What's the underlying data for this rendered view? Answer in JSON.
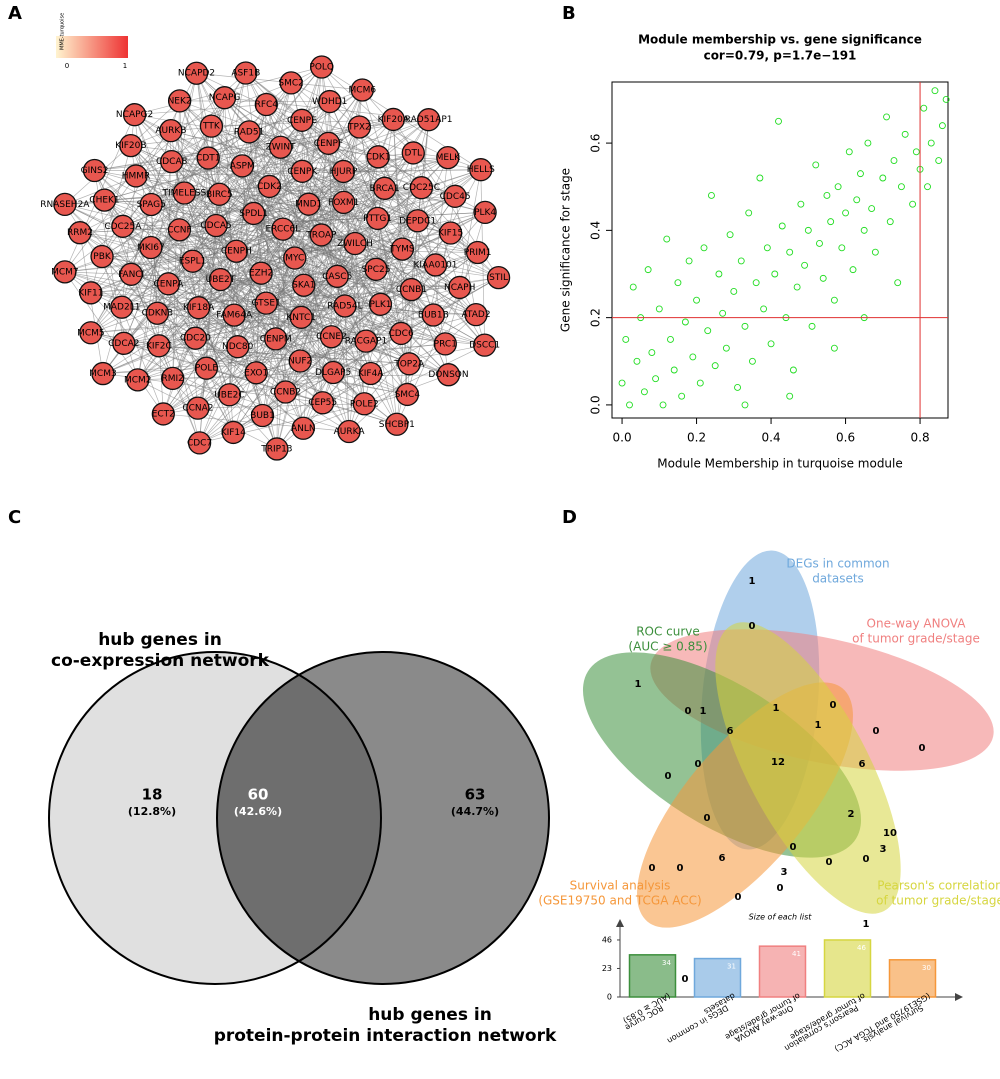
{
  "chart_data": [
    {
      "type": "network",
      "panel_label": "A",
      "legend_title": "MME-turquoise",
      "legend_ticks": [
        0,
        1
      ],
      "node_color": "#e8574f",
      "legend_colors": [
        "#fff4cf",
        "#ee3333"
      ],
      "nodes": [
        "MYC",
        "EZH2",
        "ERCC6L",
        "SKA1",
        "CENPH",
        "TROAP",
        "GTSE1",
        "SPDL1",
        "CASC5",
        "UBE2T",
        "MND1",
        "KNTC1",
        "CDCA5",
        "ZWILCH",
        "FAM64A",
        "CDK2",
        "RAD54L",
        "ESPL1",
        "FOXM1",
        "CENPM",
        "BIRC5",
        "SPC25",
        "KIF18A",
        "CENPK",
        "CCNE2",
        "CCNF",
        "PTTG1",
        "NDC80",
        "ASPM",
        "PLK1",
        "CENPA",
        "HJURP",
        "NUF2",
        "TIMELESS",
        "TYMS",
        "CDC20",
        "ZWINT",
        "RACGAP1",
        "MKI67",
        "BRCA1",
        "EXO1",
        "CDT1",
        "CCNB1",
        "CDKN3",
        "CENPF",
        "DLGAP5",
        "SPAG5",
        "DEPDC1",
        "POLE",
        "RAD51",
        "CDC6",
        "FANCI",
        "CDK1",
        "CCNB2",
        "CDCA8",
        "KIAA0101",
        "KIF2C",
        "CENPE",
        "KIF4A",
        "CDC25A",
        "CDC25C",
        "UBE2C",
        "TTK",
        "BUB1B",
        "MAD2L1",
        "TPX2",
        "CEP55",
        "HMMR",
        "KIF15",
        "RMI2",
        "RFC4",
        "TOP2A",
        "PBK",
        "DTL",
        "BUB1",
        "AURKB",
        "NCAPH",
        "CDCA2",
        "WDHD1",
        "POLE2",
        "CHEK1",
        "CDC45",
        "CCNA2",
        "NCAPG",
        "PRC1",
        "KIF11",
        "KIF20A",
        "ANLN",
        "KIF20B",
        "PRIM1",
        "MCM2",
        "SMC2",
        "SMC4",
        "RRM2",
        "MELK",
        "KIF14",
        "NEK2",
        "ATAD2",
        "MCM5",
        "MCM6",
        "AURKA",
        "GINS2",
        "PLK4",
        "ECT2",
        "ASF1B",
        "DONSON",
        "MCM7",
        "RAD51AP1",
        "TRIP13",
        "NCAPG2",
        "STIL",
        "MCM3",
        "POLQ",
        "SHCBP1",
        "RNASEH2A",
        "HELLS",
        "CDC7",
        "NCAPD2",
        "DSCC1"
      ]
    },
    {
      "type": "scatter",
      "panel_label": "B",
      "title": "Module membership vs. gene significance",
      "subtitle": "cor=0.79, p=1.7e−191",
      "x_label": "Module Membership in turquoise module",
      "y_label": "Gene significance for stage",
      "color": "#22dd22",
      "line_color": "#e03030",
      "x_threshold": 0.8,
      "y_threshold": 0.2,
      "xlim": [
        -0.027,
        0.875
      ],
      "ylim": [
        -0.03,
        0.74
      ],
      "xticks": [
        {
          "value": 0,
          "label": "0.0"
        },
        0.2,
        0.4,
        0.6,
        0.8
      ],
      "yticks": [
        {
          "value": 0,
          "label": "0.0"
        },
        0.2,
        0.4,
        0.6
      ],
      "x": [
        0.0,
        0.01,
        0.02,
        0.03,
        0.04,
        0.05,
        0.06,
        0.07,
        0.08,
        0.09,
        0.1,
        0.11,
        0.12,
        0.13,
        0.14,
        0.15,
        0.16,
        0.17,
        0.18,
        0.19,
        0.2,
        0.21,
        0.22,
        0.23,
        0.24,
        0.25,
        0.26,
        0.27,
        0.28,
        0.29,
        0.3,
        0.31,
        0.32,
        0.33,
        0.34,
        0.35,
        0.36,
        0.37,
        0.38,
        0.39,
        0.4,
        0.41,
        0.42,
        0.43,
        0.44,
        0.45,
        0.46,
        0.47,
        0.48,
        0.49,
        0.5,
        0.51,
        0.52,
        0.53,
        0.54,
        0.55,
        0.56,
        0.57,
        0.58,
        0.59,
        0.6,
        0.61,
        0.62,
        0.63,
        0.64,
        0.65,
        0.66,
        0.67,
        0.68,
        0.7,
        0.71,
        0.72,
        0.73,
        0.75,
        0.76,
        0.78,
        0.79,
        0.8,
        0.81,
        0.82,
        0.83,
        0.84,
        0.85,
        0.86,
        0.87,
        0.74,
        0.45,
        0.57,
        0.33,
        0.65
      ],
      "y": [
        0.05,
        0.15,
        0.0,
        0.27,
        0.1,
        0.2,
        0.03,
        0.31,
        0.12,
        0.06,
        0.22,
        0.0,
        0.38,
        0.15,
        0.08,
        0.28,
        0.02,
        0.19,
        0.33,
        0.11,
        0.24,
        0.05,
        0.36,
        0.17,
        0.48,
        0.09,
        0.3,
        0.21,
        0.13,
        0.39,
        0.26,
        0.04,
        0.33,
        0.18,
        0.44,
        0.1,
        0.28,
        0.52,
        0.22,
        0.36,
        0.14,
        0.3,
        0.65,
        0.41,
        0.2,
        0.35,
        0.08,
        0.27,
        0.46,
        0.32,
        0.4,
        0.18,
        0.55,
        0.37,
        0.29,
        0.48,
        0.42,
        0.24,
        0.5,
        0.36,
        0.44,
        0.58,
        0.31,
        0.47,
        0.53,
        0.4,
        0.6,
        0.45,
        0.35,
        0.52,
        0.66,
        0.42,
        0.56,
        0.5,
        0.62,
        0.46,
        0.58,
        0.54,
        0.68,
        0.5,
        0.6,
        0.72,
        0.56,
        0.64,
        0.7,
        0.28,
        0.02,
        0.13,
        0.0,
        0.2
      ]
    },
    {
      "type": "venn2",
      "panel_label": "C",
      "sets": [
        {
          "name": [
            "hub genes in",
            "co-expression network"
          ],
          "color": "#e0e0e0"
        },
        {
          "name": [
            "hub genes in",
            "protein-protein interaction network"
          ],
          "color": "#8a8a8a"
        }
      ],
      "overlap_color": "#6e6e6e",
      "values": [
        18,
        60,
        63
      ],
      "percents": [
        12.8,
        42.6,
        44.7
      ],
      "percent_labels": [
        "(12.8%)",
        "(42.6%)",
        "(44.7%)"
      ]
    },
    {
      "type": "venn5",
      "panel_label": "D",
      "sets": [
        {
          "name": [
            "DEGs in common",
            "datasets"
          ],
          "color": "#6fa8dc"
        },
        {
          "name": [
            "One-way ANOVA",
            "of tumor grade/stage"
          ],
          "color": "#f08080"
        },
        {
          "name": [
            "ROC curve",
            "(AUC ≥ 0.85)"
          ],
          "color": "#3c8f3c"
        },
        {
          "name": [
            "Survival analysis",
            "(GSE19750 and TCGA ACC)"
          ],
          "color": "#f5973a"
        },
        {
          "name": [
            "Pearson's correlation",
            "of tumor grade/stage"
          ],
          "color": "#d6d640"
        }
      ],
      "values": [
        1,
        0,
        1,
        0,
        1,
        1,
        0,
        6,
        1,
        0,
        0,
        6,
        0,
        0,
        12,
        10,
        2,
        3,
        0,
        0,
        0,
        6,
        3,
        0,
        0,
        0,
        0,
        0,
        0,
        1
      ]
    },
    {
      "type": "bar",
      "title": "Size of each list",
      "categories": [
        [
          "ROC curve",
          "(AUC ≥ 0.85)"
        ],
        [
          "DEGs in common",
          "datasets"
        ],
        [
          "One-way ANOVA",
          "of tumor grade/stage"
        ],
        [
          "Pearson's correlation",
          "of tumor grade/stage"
        ],
        [
          "Survival analysis",
          "(GSE19750 and TCGA ACC)"
        ]
      ],
      "values": [
        34,
        31,
        41,
        46,
        30
      ],
      "colors": [
        "#3c8f3c",
        "#6fa8dc",
        "#f08080",
        "#d6d640",
        "#f5973a"
      ],
      "ylim": [
        0,
        50
      ],
      "yticks": [
        0,
        23,
        46
      ]
    }
  ]
}
